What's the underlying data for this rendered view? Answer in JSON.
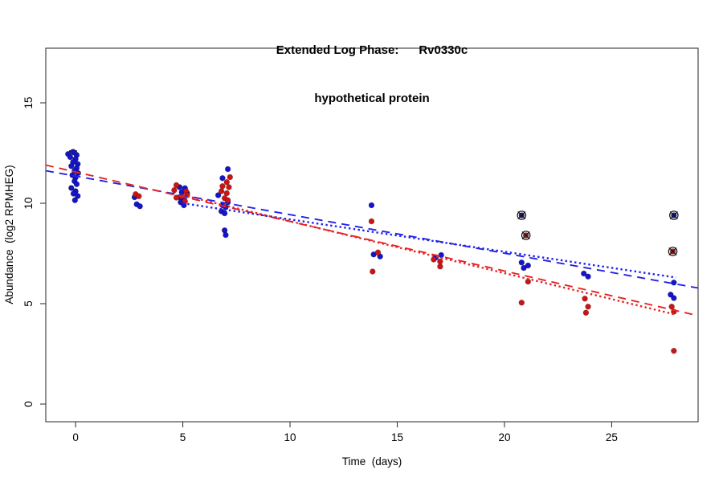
{
  "title": {
    "line1": "Extended Log Phase:      Rv0330c",
    "line2": "hypothetical protein"
  },
  "chart_data": {
    "type": "scatter",
    "title": "Extended Log Phase: Rv0330c — hypothetical protein",
    "xlabel": "Time  (days)",
    "ylabel": "Abundance  (log2 RPMHEG)",
    "xlim": [
      -1.39,
      29.03
    ],
    "ylim": [
      -0.88,
      17.72
    ],
    "x_ticks": [
      0,
      5,
      10,
      15,
      20,
      25
    ],
    "y_ticks": [
      0,
      5,
      10,
      15
    ],
    "grid": false,
    "legend": "none",
    "colors": {
      "blue_point": "#1414CC",
      "red_point": "#CC1414",
      "blue_line": "#2323E6",
      "red_line": "#E62323",
      "axis": "#3a3a3a",
      "outlier_mark": "#111111"
    },
    "series": [
      {
        "name": "blue-abundance-points",
        "color": "#1414CC",
        "points": [
          [
            -0.35,
            12.45
          ],
          [
            -0.12,
            12.56
          ],
          [
            0.05,
            12.4
          ],
          [
            -0.25,
            12.3
          ],
          [
            0.0,
            12.2
          ],
          [
            -0.12,
            12.05
          ],
          [
            0.1,
            11.95
          ],
          [
            -0.2,
            11.85
          ],
          [
            0.05,
            11.75
          ],
          [
            -0.05,
            11.62
          ],
          [
            0.12,
            11.5
          ],
          [
            -0.15,
            11.4
          ],
          [
            0.0,
            11.28
          ],
          [
            -0.05,
            11.1
          ],
          [
            0.05,
            10.95
          ],
          [
            -0.2,
            10.76
          ],
          [
            0.0,
            10.6
          ],
          [
            -0.1,
            10.48
          ],
          [
            0.1,
            10.36
          ],
          [
            -0.03,
            10.15
          ],
          [
            2.75,
            10.3
          ],
          [
            2.85,
            9.95
          ],
          [
            3.0,
            9.85
          ],
          [
            4.85,
            10.8
          ],
          [
            5.1,
            10.75
          ],
          [
            4.95,
            10.55
          ],
          [
            5.2,
            10.5
          ],
          [
            4.85,
            10.3
          ],
          [
            5.05,
            10.25
          ],
          [
            4.9,
            10.05
          ],
          [
            5.05,
            9.9
          ],
          [
            7.1,
            11.7
          ],
          [
            6.85,
            11.25
          ],
          [
            6.65,
            10.4
          ],
          [
            7.1,
            10.05
          ],
          [
            6.85,
            9.9
          ],
          [
            7.0,
            9.8
          ],
          [
            6.8,
            9.6
          ],
          [
            6.95,
            9.5
          ],
          [
            6.95,
            8.65
          ],
          [
            7.0,
            8.42
          ],
          [
            13.8,
            9.9
          ],
          [
            13.9,
            7.45
          ],
          [
            14.2,
            7.35
          ],
          [
            16.8,
            7.3
          ],
          [
            17.05,
            7.42
          ],
          [
            20.8,
            9.4
          ],
          [
            20.8,
            7.05
          ],
          [
            21.1,
            6.9
          ],
          [
            20.9,
            6.78
          ],
          [
            23.7,
            6.5
          ],
          [
            23.9,
            6.35
          ],
          [
            27.9,
            9.4
          ],
          [
            27.9,
            6.05
          ],
          [
            27.75,
            5.45
          ],
          [
            27.9,
            5.28
          ]
        ]
      },
      {
        "name": "red-abundance-points",
        "color": "#CC1414",
        "points": [
          [
            2.8,
            10.45
          ],
          [
            2.95,
            10.35
          ],
          [
            4.7,
            10.9
          ],
          [
            4.6,
            10.65
          ],
          [
            5.15,
            10.6
          ],
          [
            4.95,
            10.35
          ],
          [
            5.2,
            10.4
          ],
          [
            4.7,
            10.28
          ],
          [
            5.1,
            10.1
          ],
          [
            7.2,
            11.3
          ],
          [
            7.05,
            11.05
          ],
          [
            6.85,
            10.85
          ],
          [
            7.15,
            10.8
          ],
          [
            6.8,
            10.6
          ],
          [
            7.05,
            10.5
          ],
          [
            6.95,
            10.25
          ],
          [
            7.1,
            10.15
          ],
          [
            13.8,
            9.1
          ],
          [
            14.1,
            7.55
          ],
          [
            13.85,
            6.6
          ],
          [
            16.7,
            7.2
          ],
          [
            17.0,
            7.1
          ],
          [
            17.0,
            6.85
          ],
          [
            21.0,
            8.4
          ],
          [
            21.1,
            6.1
          ],
          [
            20.8,
            5.05
          ],
          [
            23.75,
            5.25
          ],
          [
            23.9,
            4.85
          ],
          [
            23.8,
            4.55
          ],
          [
            27.85,
            7.6
          ],
          [
            27.8,
            4.85
          ],
          [
            27.9,
            4.6
          ],
          [
            27.9,
            2.65
          ]
        ]
      }
    ],
    "trend_lines": [
      {
        "name": "blue-longdash-fit",
        "color": "#2323E6",
        "style": "longdash",
        "x1": -1.39,
        "y1": 11.62,
        "x2": 29.03,
        "y2": 5.78
      },
      {
        "name": "red-longdash-fit",
        "color": "#E62323",
        "style": "longdash",
        "x1": -1.39,
        "y1": 11.9,
        "x2": 29.03,
        "y2": 4.4
      },
      {
        "name": "blue-dotted-fit",
        "color": "#2323E6",
        "style": "dotted",
        "x1": 5.0,
        "y1": 10.0,
        "x2": 28.0,
        "y2": 6.3
      },
      {
        "name": "red-dotted-fit",
        "color": "#E62323",
        "style": "dotted",
        "x1": 5.0,
        "y1": 10.4,
        "x2": 28.0,
        "y2": 4.45
      }
    ],
    "outlier_markers": [
      {
        "x": 20.8,
        "y": 9.4
      },
      {
        "x": 21.0,
        "y": 8.4
      },
      {
        "x": 27.9,
        "y": 9.4
      },
      {
        "x": 27.85,
        "y": 7.6
      }
    ],
    "partial_outlier_marker": {
      "x": -0.12,
      "y": 12.45
    }
  }
}
